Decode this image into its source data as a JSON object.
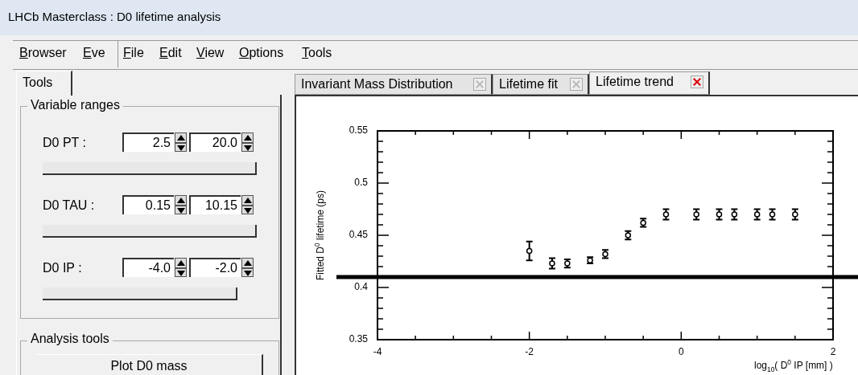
{
  "chart_data": {
    "type": "scatter",
    "title": "LHCb Masterclass : D0 lifetime analysis",
    "xlabel": "log$_{10}$( D$^{0}$ IP [mm] )",
    "ylabel": "Fitted D$^{0}$ lifetime (ps)",
    "x": [
      -2.0,
      -1.7,
      -1.5,
      -1.2,
      -1.0,
      -0.7,
      -0.5,
      -0.2,
      0.2,
      0.5,
      0.7,
      1.0,
      1.2,
      1.5
    ],
    "series": [
      {
        "color": "#000000",
        "values": [
          0.435,
          0.423,
          0.423,
          0.426,
          0.432,
          0.45,
          0.462,
          0.47,
          0.47,
          0.47,
          0.47,
          0.47,
          0.47,
          0.47
        ],
        "errors": [
          0.009,
          0.005,
          0.004,
          0.003,
          0.004,
          0.004,
          0.004,
          0.005,
          0.005,
          0.005,
          0.005,
          0.005,
          0.005,
          0.005
        ]
      }
    ],
    "xlim": [
      -4,
      2
    ],
    "xticks": [
      -4,
      -2,
      0,
      2
    ],
    "ylim": [
      0.35,
      0.55
    ],
    "yticks": [
      0.35,
      0.4,
      0.45,
      0.5,
      0.55
    ],
    "marker": "circle",
    "ref_lines": [
      {
        "axis": "y",
        "value": 0.41,
        "color": "#000000"
      }
    ],
    "annotations": [
      "Browser",
      "Eve",
      "File",
      "Edit",
      "View",
      "Options",
      "Tools",
      "Tools",
      "Variable ranges",
      "D0 PT :",
      "2.5",
      "20.0",
      "D0 TAU :",
      "0.15",
      "10.15",
      "D0 IP :",
      "-4.0",
      "-2.0",
      "Analysis tools",
      "Plot D0 mass",
      "Invariant Mass Distribution",
      "Lifetime fit",
      "Lifetime trend"
    ]
  }
}
